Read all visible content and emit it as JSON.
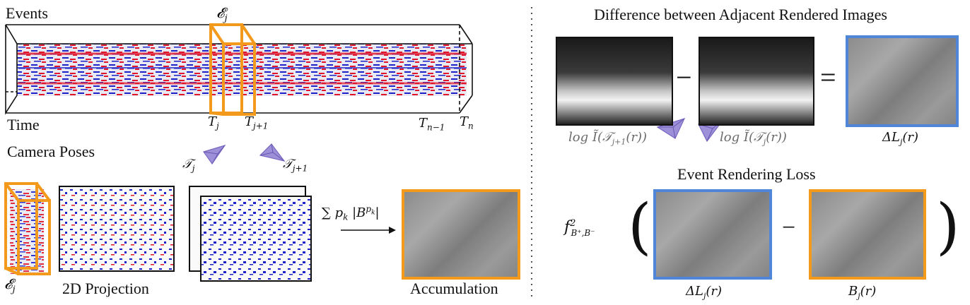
{
  "left": {
    "events_label": "Events",
    "time_label": "Time",
    "window_symbol": "𝓔",
    "window_sub": "j",
    "ticks": [
      {
        "base": "T",
        "sub": "j"
      },
      {
        "base": "T",
        "sub": "j+1"
      },
      {
        "base": "T",
        "sub": "n−1"
      },
      {
        "base": "T",
        "sub": "n"
      }
    ],
    "camera_poses_label": "Camera Poses",
    "pose_a": {
      "base": "𝒯",
      "sub": "j"
    },
    "pose_b": {
      "base": "𝒯",
      "sub": "j+1"
    },
    "window_small_symbol": "𝓔",
    "window_small_sub": "j",
    "projection_label": "2D Projection",
    "sum_formula": "∑ p",
    "sum_sub": "k",
    "sum_rest": " |B",
    "sum_sup": "p",
    "sum_sup_sub": "k",
    "sum_close": "|",
    "accumulation_label": "Accumulation"
  },
  "right": {
    "title": "Difference between Adjacent Rendered Images",
    "minus": "−",
    "equals": "=",
    "cap1_pre": "log Ĩ(𝒯",
    "cap1_sub": "j+1",
    "cap1_post": "(r))",
    "cap2_pre": "log Ĩ(𝒯",
    "cap2_sub": "j",
    "cap2_post": "(r))",
    "cap3_pre": "ΔL",
    "cap3_sub": "j",
    "cap3_post": "(r)",
    "loss_title": "Event Rendering Loss",
    "f_base": "f",
    "f_sup": "2",
    "f_sub": "B⁺,B⁻",
    "open_paren": "(",
    "close_paren": ")",
    "loss_minus": "−",
    "cap4_pre": "ΔL",
    "cap4_sub": "j",
    "cap4_post": "(r)",
    "cap5_pre": "B",
    "cap5_sub": "j",
    "cap5_post": "(r)"
  },
  "colors": {
    "blue_border": "#4f86d8",
    "orange_border": "#f39a1d",
    "event_red": "#e0142a",
    "event_blue": "#1c22c8",
    "camera_purple": "#8f7fcf"
  }
}
